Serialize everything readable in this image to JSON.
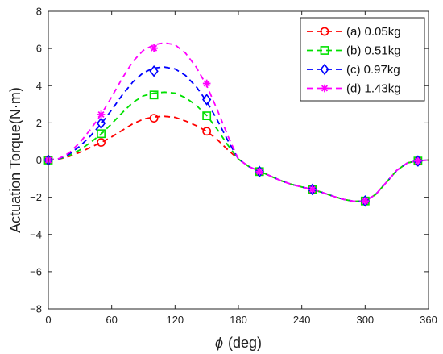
{
  "chart_data": {
    "type": "line",
    "xlabel_symbol": "ϕ",
    "xlabel_unit": "(deg)",
    "ylabel": "Actuation Torque(N·m)",
    "xlim": [
      0,
      360
    ],
    "ylim": [
      -8,
      8
    ],
    "xticks": [
      0,
      60,
      120,
      180,
      240,
      300,
      360
    ],
    "yticks": [
      -8,
      -6,
      -4,
      -2,
      0,
      2,
      4,
      6,
      8
    ],
    "grid": false,
    "legend_position": "top-right",
    "series": [
      {
        "name": "(a) 0.05kg",
        "color": "#ff0000",
        "marker": "circle",
        "x": [
          0,
          10,
          20,
          30,
          40,
          50,
          60,
          70,
          80,
          90,
          100,
          110,
          120,
          130,
          140,
          150,
          160,
          170,
          180,
          190,
          200,
          210,
          220,
          230,
          240,
          250,
          260,
          270,
          280,
          290,
          300,
          310,
          320,
          330,
          340,
          350,
          360
        ],
        "values": [
          0,
          0.05,
          0.2,
          0.42,
          0.68,
          0.95,
          1.25,
          1.6,
          1.95,
          2.2,
          2.32,
          2.35,
          2.3,
          2.1,
          1.85,
          1.55,
          1.1,
          0.55,
          0.05,
          -0.35,
          -0.6,
          -0.85,
          -1.1,
          -1.3,
          -1.45,
          -1.58,
          -1.75,
          -1.95,
          -2.12,
          -2.22,
          -2.2,
          -1.85,
          -1.2,
          -0.55,
          -0.15,
          -0.03,
          0
        ],
        "markers_x": [
          0,
          50,
          100,
          150,
          200,
          250,
          300,
          350
        ],
        "markers_y": [
          0,
          0.95,
          2.25,
          1.55,
          -0.62,
          -1.58,
          -2.2,
          -0.05
        ]
      },
      {
        "name": "(b) 0.51kg",
        "color": "#00e000",
        "marker": "square",
        "x": [
          0,
          10,
          20,
          30,
          40,
          50,
          60,
          70,
          80,
          90,
          100,
          110,
          120,
          130,
          140,
          150,
          160,
          170,
          180,
          190,
          200,
          210,
          220,
          230,
          240,
          250,
          260,
          270,
          280,
          290,
          300,
          310,
          320,
          330,
          340,
          350,
          360
        ],
        "values": [
          0,
          0.05,
          0.25,
          0.55,
          0.95,
          1.4,
          1.95,
          2.55,
          3.1,
          3.45,
          3.6,
          3.65,
          3.6,
          3.35,
          2.95,
          2.4,
          1.65,
          0.8,
          0.05,
          -0.35,
          -0.6,
          -0.85,
          -1.1,
          -1.3,
          -1.45,
          -1.58,
          -1.75,
          -1.95,
          -2.12,
          -2.22,
          -2.2,
          -1.85,
          -1.2,
          -0.55,
          -0.15,
          -0.03,
          0
        ],
        "markers_x": [
          0,
          50,
          100,
          150,
          200,
          250,
          300,
          350
        ],
        "markers_y": [
          0,
          1.42,
          3.5,
          2.38,
          -0.62,
          -1.58,
          -2.2,
          -0.05
        ]
      },
      {
        "name": "(c) 0.97kg",
        "color": "#0000ff",
        "marker": "diamond",
        "x": [
          0,
          10,
          20,
          30,
          40,
          50,
          60,
          70,
          80,
          90,
          100,
          110,
          120,
          130,
          140,
          150,
          160,
          170,
          180,
          190,
          200,
          210,
          220,
          230,
          240,
          250,
          260,
          270,
          280,
          290,
          300,
          310,
          320,
          330,
          340,
          350,
          360
        ],
        "values": [
          0,
          0.07,
          0.33,
          0.75,
          1.3,
          1.95,
          2.7,
          3.5,
          4.2,
          4.7,
          4.95,
          5.0,
          4.9,
          4.55,
          3.95,
          3.15,
          2.15,
          1.05,
          0.05,
          -0.35,
          -0.6,
          -0.85,
          -1.1,
          -1.3,
          -1.45,
          -1.58,
          -1.75,
          -1.95,
          -2.12,
          -2.22,
          -2.2,
          -1.85,
          -1.2,
          -0.55,
          -0.15,
          -0.03,
          0
        ],
        "markers_x": [
          0,
          50,
          100,
          150,
          200,
          250,
          300,
          350
        ],
        "markers_y": [
          0,
          1.98,
          4.78,
          3.25,
          -0.62,
          -1.58,
          -2.2,
          -0.05
        ]
      },
      {
        "name": "(d) 1.43kg",
        "color": "#ff00ff",
        "marker": "asterisk",
        "x": [
          0,
          10,
          20,
          30,
          40,
          50,
          60,
          70,
          80,
          90,
          100,
          110,
          120,
          130,
          140,
          150,
          160,
          170,
          180,
          190,
          200,
          210,
          220,
          230,
          240,
          250,
          260,
          270,
          280,
          290,
          300,
          310,
          320,
          330,
          340,
          350,
          360
        ],
        "values": [
          0,
          0.08,
          0.4,
          0.95,
          1.65,
          2.45,
          3.4,
          4.4,
          5.3,
          5.9,
          6.2,
          6.3,
          6.2,
          5.75,
          5.0,
          4.0,
          2.7,
          1.3,
          0.05,
          -0.35,
          -0.6,
          -0.85,
          -1.1,
          -1.3,
          -1.45,
          -1.58,
          -1.75,
          -1.95,
          -2.12,
          -2.22,
          -2.2,
          -1.85,
          -1.2,
          -0.55,
          -0.15,
          -0.03,
          0
        ],
        "markers_x": [
          0,
          50,
          100,
          150,
          200,
          250,
          300,
          350
        ],
        "markers_y": [
          0,
          2.45,
          6.02,
          4.12,
          -0.62,
          -1.58,
          -2.2,
          -0.05
        ]
      }
    ]
  }
}
